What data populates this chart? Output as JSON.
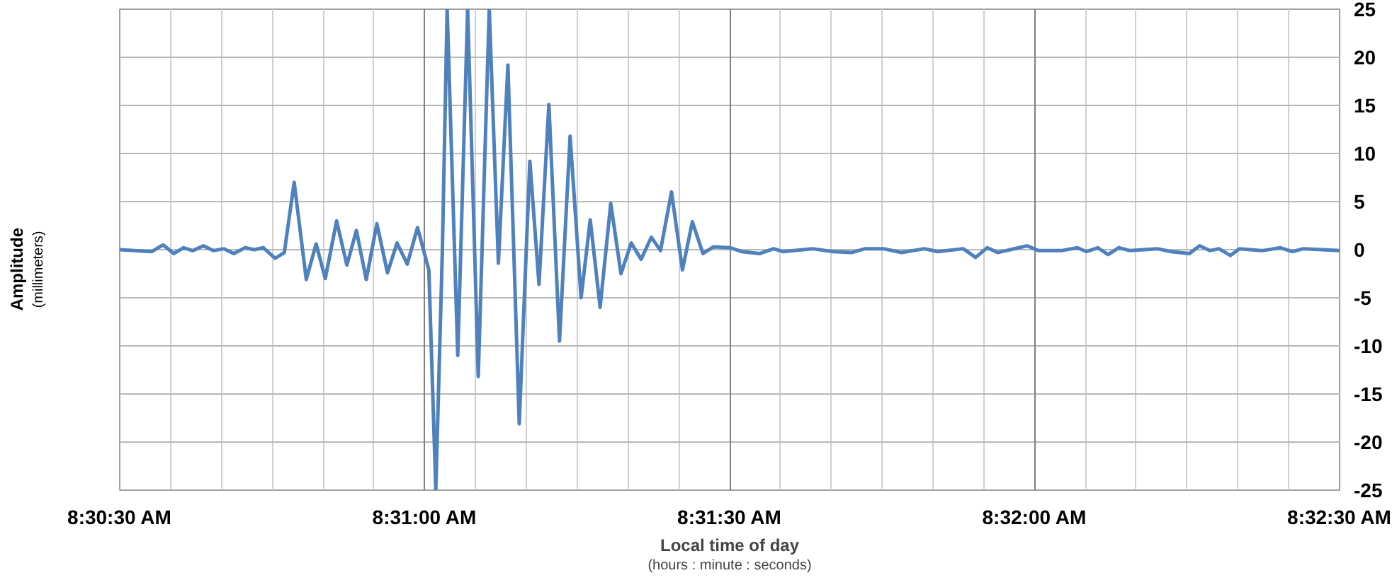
{
  "chart_data": {
    "type": "line",
    "xlabel": "Local time of day\n(hours : minute : seconds)",
    "ylabel": "Amplitude\n(millimeters)",
    "xlim": [
      8.508333,
      8.541667
    ],
    "ylim": [
      -25,
      25
    ],
    "xticks": [
      {
        "value": 8.508333,
        "label": "8:30:30 AM"
      },
      {
        "value": 8.509722,
        "label": null
      },
      {
        "value": 8.511111,
        "label": null
      },
      {
        "value": 8.5125,
        "label": null
      },
      {
        "value": 8.513889,
        "label": null
      },
      {
        "value": 8.515278,
        "label": null
      },
      {
        "value": 8.516667,
        "label": "8:31:00 AM"
      },
      {
        "value": 8.518056,
        "label": null
      },
      {
        "value": 8.519444,
        "label": null
      },
      {
        "value": 8.520833,
        "label": null
      },
      {
        "value": 8.522222,
        "label": null
      },
      {
        "value": 8.523611,
        "label": null
      },
      {
        "value": 8.525,
        "label": "8:31:30 AM"
      },
      {
        "value": 8.526389,
        "label": null
      },
      {
        "value": 8.527778,
        "label": null
      },
      {
        "value": 8.529167,
        "label": null
      },
      {
        "value": 8.530556,
        "label": null
      },
      {
        "value": 8.531944,
        "label": null
      },
      {
        "value": 8.533333,
        "label": "8:32:00 AM"
      },
      {
        "value": 8.534722,
        "label": null
      },
      {
        "value": 8.536111,
        "label": null
      },
      {
        "value": 8.5375,
        "label": null
      },
      {
        "value": 8.538889,
        "label": null
      },
      {
        "value": 8.540278,
        "label": null
      },
      {
        "value": 8.541667,
        "label": "8:32:30 AM"
      }
    ],
    "yticks": [
      -25,
      -20,
      -15,
      -10,
      -5,
      0,
      5,
      10,
      15,
      20,
      25
    ],
    "grid": true,
    "line_style": "solid",
    "series": [
      {
        "color": "#4f81bd",
        "x": [
          8.508333,
          8.50921,
          8.50952,
          8.50981,
          8.51008,
          8.51033,
          8.51062,
          8.51089,
          8.51118,
          8.51145,
          8.51176,
          8.51201,
          8.51226,
          8.51258,
          8.51283,
          8.5131,
          8.51343,
          8.5137,
          8.51395,
          8.51426,
          8.51454,
          8.5148,
          8.51507,
          8.51536,
          8.51565,
          8.51591,
          8.51619,
          8.51647,
          8.51678,
          8.51697,
          8.51715,
          8.51728,
          8.51757,
          8.51784,
          8.51813,
          8.51843,
          8.51868,
          8.51894,
          8.51925,
          8.51954,
          8.51979,
          8.52006,
          8.52035,
          8.52064,
          8.52094,
          8.52119,
          8.52146,
          8.52175,
          8.52203,
          8.52231,
          8.52258,
          8.52286,
          8.52311,
          8.52341,
          8.52371,
          8.52398,
          8.52427,
          8.52456,
          8.52502,
          8.52533,
          8.52583,
          8.5262,
          8.52645,
          8.52726,
          8.52783,
          8.52833,
          8.5287,
          8.5292,
          8.5297,
          8.53032,
          8.53069,
          8.53138,
          8.53172,
          8.53204,
          8.53232,
          8.53313,
          8.53344,
          8.53406,
          8.5345,
          8.53475,
          8.53506,
          8.53534,
          8.53563,
          8.53594,
          8.53669,
          8.53706,
          8.53756,
          8.53784,
          8.53812,
          8.53837,
          8.53868,
          8.53893,
          8.53956,
          8.54005,
          8.54037,
          8.54068,
          8.54118,
          8.541667
        ],
        "values": [
          0,
          -0.2,
          0.5,
          -0.4,
          0.2,
          -0.1,
          0.4,
          -0.1,
          0.1,
          -0.4,
          0.2,
          0,
          0.2,
          -0.9,
          -0.3,
          7.0,
          -3.1,
          0.6,
          -3.0,
          3.0,
          -1.6,
          2.0,
          -3.1,
          2.7,
          -2.4,
          0.7,
          -1.5,
          2.3,
          -2.1,
          -25,
          0,
          25,
          -11.0,
          25,
          -13.2,
          25,
          -1.4,
          19.2,
          -18.1,
          9.2,
          -3.6,
          15.1,
          -9.5,
          11.8,
          -5.0,
          3.1,
          -6.0,
          4.8,
          -2.5,
          0.7,
          -1.0,
          1.3,
          -0.1,
          6.0,
          -2.1,
          2.9,
          -0.4,
          0.3,
          0.2,
          -0.2,
          -0.4,
          0.1,
          -0.2,
          0.1,
          -0.2,
          -0.3,
          0.1,
          0.1,
          -0.3,
          0.1,
          -0.2,
          0.1,
          -0.8,
          0.2,
          -0.3,
          0.4,
          -0.1,
          -0.1,
          0.2,
          -0.2,
          0.2,
          -0.5,
          0.2,
          -0.1,
          0.1,
          -0.2,
          -0.4,
          0.4,
          -0.1,
          0.1,
          -0.6,
          0.1,
          -0.1,
          0.2,
          -0.2,
          0.1,
          0,
          -0.1
        ]
      }
    ]
  }
}
